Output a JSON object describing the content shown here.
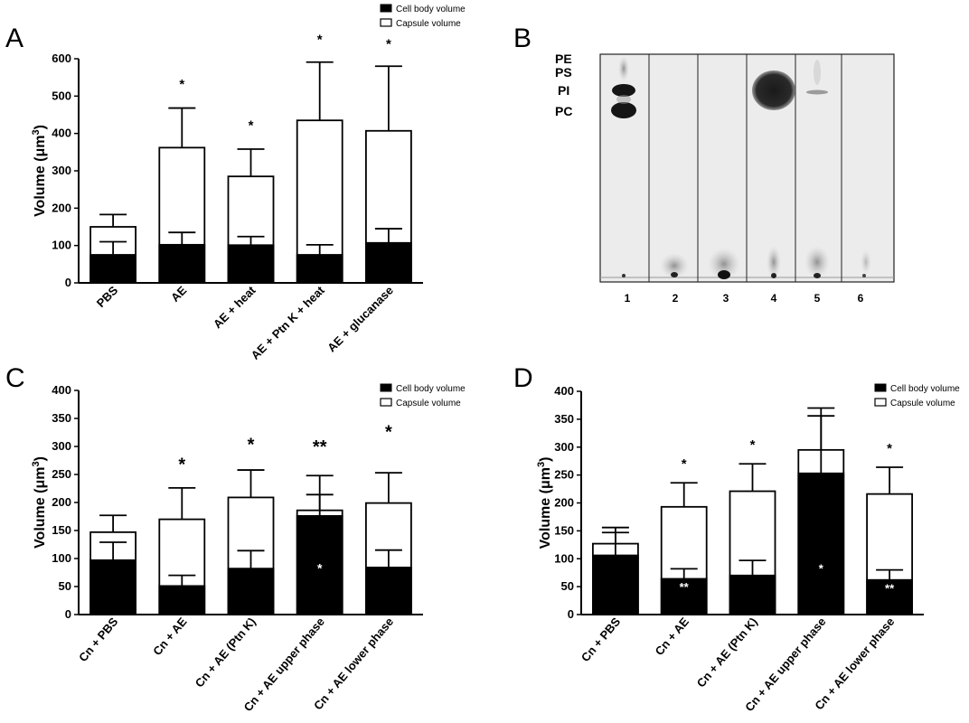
{
  "figure": {
    "panel_letters": [
      "A",
      "B",
      "C",
      "D"
    ]
  },
  "chart_data": [
    {
      "panel": "A",
      "type": "bar",
      "ylabel_main": "Volume (",
      "ylabel_unit": "μm",
      "ylabel_sup": "3",
      "ylabel_end": ")",
      "ylim": [
        0,
        600
      ],
      "yticks": [
        0,
        100,
        200,
        300,
        400,
        500,
        600
      ],
      "categories": [
        "PBS",
        "AE",
        "AE + heat",
        "AE + Ptn K + heat",
        "AE + glucanase"
      ],
      "legend": {
        "position": "top-right",
        "entries": [
          "Cell body volume",
          "Capsule volume"
        ]
      },
      "series": [
        {
          "name": "Cell body volume",
          "color": "#000000",
          "values": [
            75,
            102,
            101,
            75,
            107
          ],
          "error": [
            110,
            135,
            124,
            102,
            145
          ]
        },
        {
          "name": "Capsule volume",
          "color": "#ffffff",
          "values": [
            150,
            362,
            285,
            435,
            407
          ],
          "error": [
            183,
            468,
            358,
            591,
            580
          ]
        }
      ],
      "annotations": [
        {
          "category": 1,
          "text": "*",
          "y": 520,
          "color": "#000000",
          "size": 15
        },
        {
          "category": 2,
          "text": "*",
          "y": 410,
          "color": "#000000",
          "size": 15
        },
        {
          "category": 3,
          "text": "*",
          "y": 640,
          "color": "#000000",
          "size": 15
        },
        {
          "category": 4,
          "text": "*",
          "y": 628,
          "color": "#000000",
          "size": 15
        }
      ]
    },
    {
      "panel": "C",
      "type": "bar",
      "ylabel_main": "Volume (",
      "ylabel_unit": "μm",
      "ylabel_sup": "3",
      "ylabel_end": ")",
      "ylim": [
        0,
        400
      ],
      "yticks": [
        0,
        50,
        100,
        150,
        200,
        250,
        300,
        350,
        400
      ],
      "categories": [
        "Cn + PBS",
        "Cn + AE",
        "Cn + AE (Ptn K)",
        "Cn + AE upper phase",
        "Cn + AE lower phase"
      ],
      "legend": {
        "position": "top-right",
        "entries": [
          "Cell body volume",
          "Capsule volume"
        ]
      },
      "series": [
        {
          "name": "Cell body volume",
          "color": "#000000",
          "values": [
            97,
            51,
            82,
            176,
            84
          ],
          "error": [
            129,
            70,
            114,
            214,
            115
          ]
        },
        {
          "name": "Capsule volume",
          "color": "#ffffff",
          "values": [
            147,
            170,
            209,
            186,
            199
          ],
          "error": [
            177,
            226,
            258,
            248,
            253
          ]
        }
      ],
      "annotations": [
        {
          "category": 1,
          "text": "*",
          "y": 257,
          "color": "#000000",
          "size": 20
        },
        {
          "category": 2,
          "text": "*",
          "y": 293,
          "color": "#000000",
          "size": 20
        },
        {
          "category": 3,
          "text": "**",
          "y": 289,
          "color": "#000000",
          "size": 20
        },
        {
          "category": 4,
          "text": "*",
          "y": 315,
          "color": "#000000",
          "size": 20
        },
        {
          "category": 3,
          "text": "*",
          "y": 75,
          "color": "#ffffff",
          "size": 14
        }
      ]
    },
    {
      "panel": "D",
      "type": "bar",
      "ylabel_main": "Volume (",
      "ylabel_unit": "μm",
      "ylabel_sup": "3",
      "ylabel_end": ")",
      "ylim": [
        0,
        400
      ],
      "yticks": [
        0,
        50,
        100,
        150,
        200,
        250,
        300,
        350,
        400
      ],
      "categories": [
        "Cn + PBS",
        "Cn + AE",
        "Cn + AE (Ptn K)",
        "Cn + AE upper phase",
        "Cn + AE lower phase"
      ],
      "legend": {
        "position": "top-right",
        "entries": [
          "Cell body volume",
          "Capsule volume"
        ]
      },
      "series": [
        {
          "name": "Cell body volume",
          "color": "#000000",
          "values": [
            106,
            64,
            70,
            253,
            62
          ],
          "error": [
            147,
            82,
            97,
            356,
            80
          ]
        },
        {
          "name": "Capsule volume",
          "color": "#ffffff",
          "values": [
            127,
            193,
            221,
            295,
            216
          ],
          "error": [
            156,
            236,
            270,
            370,
            264
          ]
        }
      ],
      "annotations": [
        {
          "category": 1,
          "text": "*",
          "y": 262,
          "color": "#000000",
          "size": 15
        },
        {
          "category": 2,
          "text": "*",
          "y": 296,
          "color": "#000000",
          "size": 15
        },
        {
          "category": 4,
          "text": "*",
          "y": 290,
          "color": "#000000",
          "size": 15
        },
        {
          "category": 1,
          "text": "**",
          "y": 42,
          "color": "#ffffff",
          "size": 13
        },
        {
          "category": 3,
          "text": "*",
          "y": 75,
          "color": "#ffffff",
          "size": 13
        },
        {
          "category": 4,
          "text": "**",
          "y": 40,
          "color": "#ffffff",
          "size": 13
        }
      ]
    }
  ],
  "tlc": {
    "panel": "B",
    "lipid_labels": [
      "PE",
      "PS",
      "PI",
      "PC"
    ],
    "lanes": [
      "1",
      "2",
      "3",
      "4",
      "5",
      "6"
    ]
  }
}
